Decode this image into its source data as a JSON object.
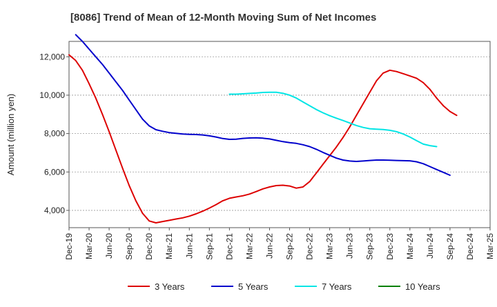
{
  "chart_data": {
    "type": "line",
    "title": "[8086]  Trend of Mean of 12-Month Moving Sum of Net Incomes",
    "xlabel": "",
    "ylabel": "Amount (million yen)",
    "x_ticks": [
      "Dec-19",
      "Mar-20",
      "Jun-20",
      "Sep-20",
      "Dec-20",
      "Mar-21",
      "Jun-21",
      "Sep-21",
      "Dec-21",
      "Mar-22",
      "Jun-22",
      "Sep-22",
      "Dec-22",
      "Mar-23",
      "Jun-23",
      "Sep-23",
      "Dec-23",
      "Mar-24",
      "Jun-24",
      "Sep-24",
      "Dec-24",
      "Mar-25"
    ],
    "y_ticks": [
      4000,
      6000,
      8000,
      10000,
      12000
    ],
    "y_tick_labels": [
      "4,000",
      "6,000",
      "8,000",
      "10,000",
      "12,000"
    ],
    "ylim": [
      3100,
      12800
    ],
    "xlim": [
      "Dec-19",
      "Mar-25"
    ],
    "grid": true,
    "legend_position": "bottom",
    "series": [
      {
        "name": "3 Years",
        "color": "#dd0000",
        "points": [
          [
            "Dec-19",
            12100
          ],
          [
            "Jan-20",
            11800
          ],
          [
            "Feb-20",
            11300
          ],
          [
            "Mar-20",
            10600
          ],
          [
            "Apr-20",
            9850
          ],
          [
            "May-20",
            9000
          ],
          [
            "Jun-20",
            8100
          ],
          [
            "Jul-20",
            7150
          ],
          [
            "Aug-20",
            6200
          ],
          [
            "Sep-20",
            5300
          ],
          [
            "Oct-20",
            4500
          ],
          [
            "Nov-20",
            3850
          ],
          [
            "Dec-20",
            3450
          ],
          [
            "Jan-21",
            3350
          ],
          [
            "Feb-21",
            3420
          ],
          [
            "Mar-21",
            3480
          ],
          [
            "Apr-21",
            3550
          ],
          [
            "May-21",
            3610
          ],
          [
            "Jun-21",
            3700
          ],
          [
            "Jul-21",
            3820
          ],
          [
            "Aug-21",
            3960
          ],
          [
            "Sep-21",
            4120
          ],
          [
            "Oct-21",
            4300
          ],
          [
            "Nov-21",
            4500
          ],
          [
            "Dec-21",
            4630
          ],
          [
            "Jan-22",
            4700
          ],
          [
            "Feb-22",
            4760
          ],
          [
            "Mar-22",
            4850
          ],
          [
            "Apr-22",
            4980
          ],
          [
            "May-22",
            5120
          ],
          [
            "Jun-22",
            5220
          ],
          [
            "Jul-22",
            5290
          ],
          [
            "Aug-22",
            5310
          ],
          [
            "Sep-22",
            5270
          ],
          [
            "Oct-22",
            5160
          ],
          [
            "Nov-22",
            5220
          ],
          [
            "Dec-22",
            5500
          ],
          [
            "Jan-23",
            5950
          ],
          [
            "Feb-23",
            6400
          ],
          [
            "Mar-23",
            6850
          ],
          [
            "Apr-23",
            7300
          ],
          [
            "May-23",
            7800
          ],
          [
            "Jun-23",
            8350
          ],
          [
            "Jul-23",
            8950
          ],
          [
            "Aug-23",
            9550
          ],
          [
            "Sep-23",
            10150
          ],
          [
            "Oct-23",
            10750
          ],
          [
            "Nov-23",
            11150
          ],
          [
            "Dec-23",
            11300
          ],
          [
            "Jan-24",
            11230
          ],
          [
            "Feb-24",
            11120
          ],
          [
            "Mar-24",
            11000
          ],
          [
            "Apr-24",
            10880
          ],
          [
            "May-24",
            10650
          ],
          [
            "Jun-24",
            10300
          ],
          [
            "Jul-24",
            9850
          ],
          [
            "Aug-24",
            9450
          ],
          [
            "Sep-24",
            9150
          ],
          [
            "Oct-24",
            8950
          ]
        ]
      },
      {
        "name": "5 Years",
        "color": "#0000cc",
        "points": [
          [
            "Jan-20",
            13150
          ],
          [
            "Feb-20",
            12800
          ],
          [
            "Mar-20",
            12400
          ],
          [
            "Apr-20",
            12000
          ],
          [
            "May-20",
            11600
          ],
          [
            "Jun-20",
            11150
          ],
          [
            "Jul-20",
            10700
          ],
          [
            "Aug-20",
            10250
          ],
          [
            "Sep-20",
            9750
          ],
          [
            "Oct-20",
            9250
          ],
          [
            "Nov-20",
            8750
          ],
          [
            "Dec-20",
            8400
          ],
          [
            "Jan-21",
            8200
          ],
          [
            "Feb-21",
            8120
          ],
          [
            "Mar-21",
            8050
          ],
          [
            "Apr-21",
            8010
          ],
          [
            "May-21",
            7980
          ],
          [
            "Jun-21",
            7960
          ],
          [
            "Jul-21",
            7950
          ],
          [
            "Aug-21",
            7930
          ],
          [
            "Sep-21",
            7880
          ],
          [
            "Oct-21",
            7820
          ],
          [
            "Nov-21",
            7740
          ],
          [
            "Dec-21",
            7700
          ],
          [
            "Jan-22",
            7710
          ],
          [
            "Feb-22",
            7750
          ],
          [
            "Mar-22",
            7770
          ],
          [
            "Apr-22",
            7780
          ],
          [
            "May-22",
            7760
          ],
          [
            "Jun-22",
            7720
          ],
          [
            "Jul-22",
            7650
          ],
          [
            "Aug-22",
            7580
          ],
          [
            "Sep-22",
            7530
          ],
          [
            "Oct-22",
            7490
          ],
          [
            "Nov-22",
            7420
          ],
          [
            "Dec-22",
            7320
          ],
          [
            "Jan-23",
            7180
          ],
          [
            "Feb-23",
            7020
          ],
          [
            "Mar-23",
            6870
          ],
          [
            "Apr-23",
            6720
          ],
          [
            "May-23",
            6620
          ],
          [
            "Jun-23",
            6570
          ],
          [
            "Jul-23",
            6550
          ],
          [
            "Aug-23",
            6570
          ],
          [
            "Sep-23",
            6600
          ],
          [
            "Oct-23",
            6620
          ],
          [
            "Nov-23",
            6620
          ],
          [
            "Dec-23",
            6610
          ],
          [
            "Jan-24",
            6600
          ],
          [
            "Feb-24",
            6590
          ],
          [
            "Mar-24",
            6580
          ],
          [
            "Apr-24",
            6530
          ],
          [
            "May-24",
            6430
          ],
          [
            "Jun-24",
            6280
          ],
          [
            "Jul-24",
            6130
          ],
          [
            "Aug-24",
            5980
          ],
          [
            "Sep-24",
            5830
          ]
        ]
      },
      {
        "name": "7 Years",
        "color": "#00e5e5",
        "points": [
          [
            "Dec-21",
            10050
          ],
          [
            "Jan-22",
            10050
          ],
          [
            "Feb-22",
            10070
          ],
          [
            "Mar-22",
            10090
          ],
          [
            "Apr-22",
            10110
          ],
          [
            "May-22",
            10140
          ],
          [
            "Jun-22",
            10150
          ],
          [
            "Jul-22",
            10150
          ],
          [
            "Aug-22",
            10100
          ],
          [
            "Sep-22",
            10000
          ],
          [
            "Oct-22",
            9850
          ],
          [
            "Nov-22",
            9650
          ],
          [
            "Dec-22",
            9450
          ],
          [
            "Jan-23",
            9250
          ],
          [
            "Feb-23",
            9080
          ],
          [
            "Mar-23",
            8930
          ],
          [
            "Apr-23",
            8800
          ],
          [
            "May-23",
            8680
          ],
          [
            "Jun-23",
            8550
          ],
          [
            "Jul-23",
            8420
          ],
          [
            "Aug-23",
            8320
          ],
          [
            "Sep-23",
            8250
          ],
          [
            "Oct-23",
            8230
          ],
          [
            "Nov-23",
            8210
          ],
          [
            "Dec-23",
            8170
          ],
          [
            "Jan-24",
            8100
          ],
          [
            "Feb-24",
            7980
          ],
          [
            "Mar-24",
            7820
          ],
          [
            "Apr-24",
            7630
          ],
          [
            "May-24",
            7450
          ],
          [
            "Jun-24",
            7370
          ],
          [
            "Jul-24",
            7320
          ]
        ]
      },
      {
        "name": "10 Years",
        "color": "#008000",
        "points": []
      }
    ]
  }
}
